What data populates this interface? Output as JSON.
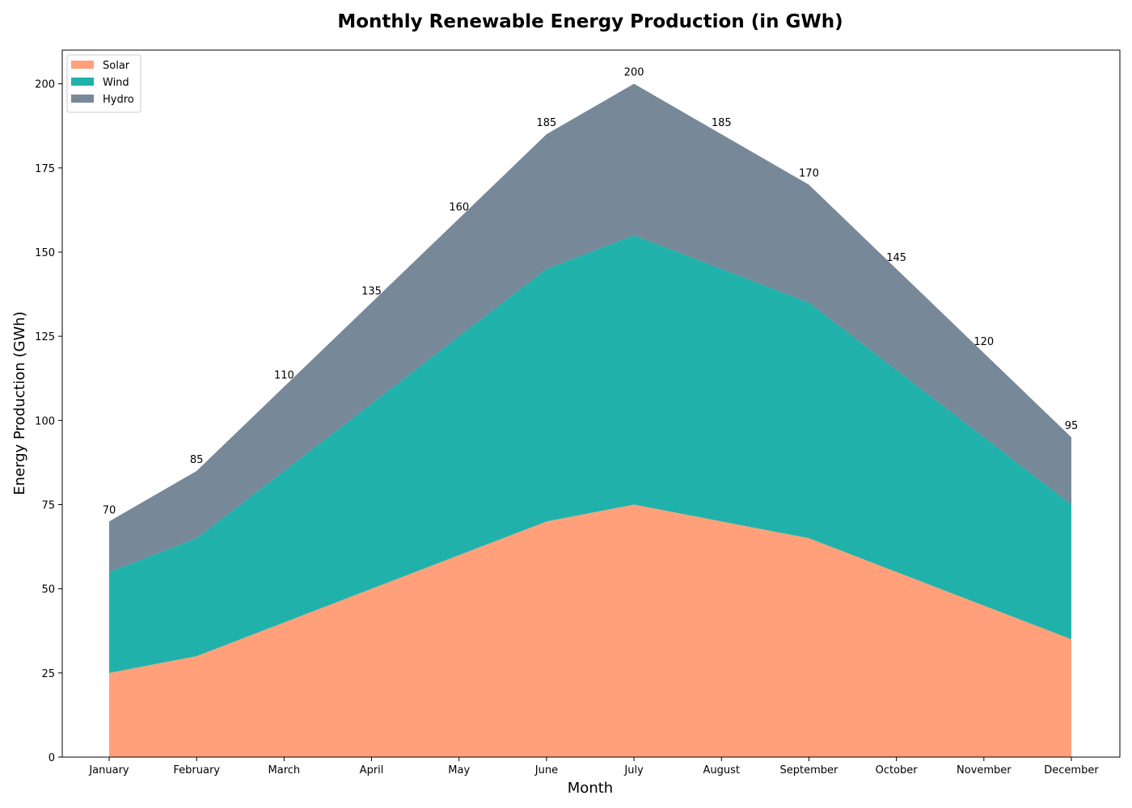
{
  "chart_data": {
    "type": "area",
    "stacked": true,
    "title": "Monthly Renewable Energy Production (in GWh)",
    "xlabel": "Month",
    "ylabel": "Energy Production (GWh)",
    "categories": [
      "January",
      "February",
      "March",
      "April",
      "May",
      "June",
      "July",
      "August",
      "September",
      "October",
      "November",
      "December"
    ],
    "series": [
      {
        "name": "Solar",
        "color": "#FFA07A",
        "values": [
          25,
          30,
          40,
          50,
          60,
          70,
          75,
          70,
          65,
          55,
          45,
          35
        ]
      },
      {
        "name": "Wind",
        "color": "#20B2AA",
        "values": [
          30,
          35,
          45,
          55,
          65,
          75,
          80,
          75,
          70,
          60,
          50,
          40
        ]
      },
      {
        "name": "Hydro",
        "color": "#778899",
        "values": [
          15,
          20,
          25,
          30,
          35,
          40,
          45,
          40,
          35,
          30,
          25,
          20
        ]
      }
    ],
    "totals": [
      70,
      85,
      110,
      135,
      160,
      185,
      200,
      185,
      170,
      145,
      120,
      95
    ],
    "ylim": [
      0,
      210
    ],
    "yticks": [
      0,
      25,
      50,
      75,
      100,
      125,
      150,
      175,
      200
    ],
    "grid": false,
    "legend_position": "top-left"
  }
}
